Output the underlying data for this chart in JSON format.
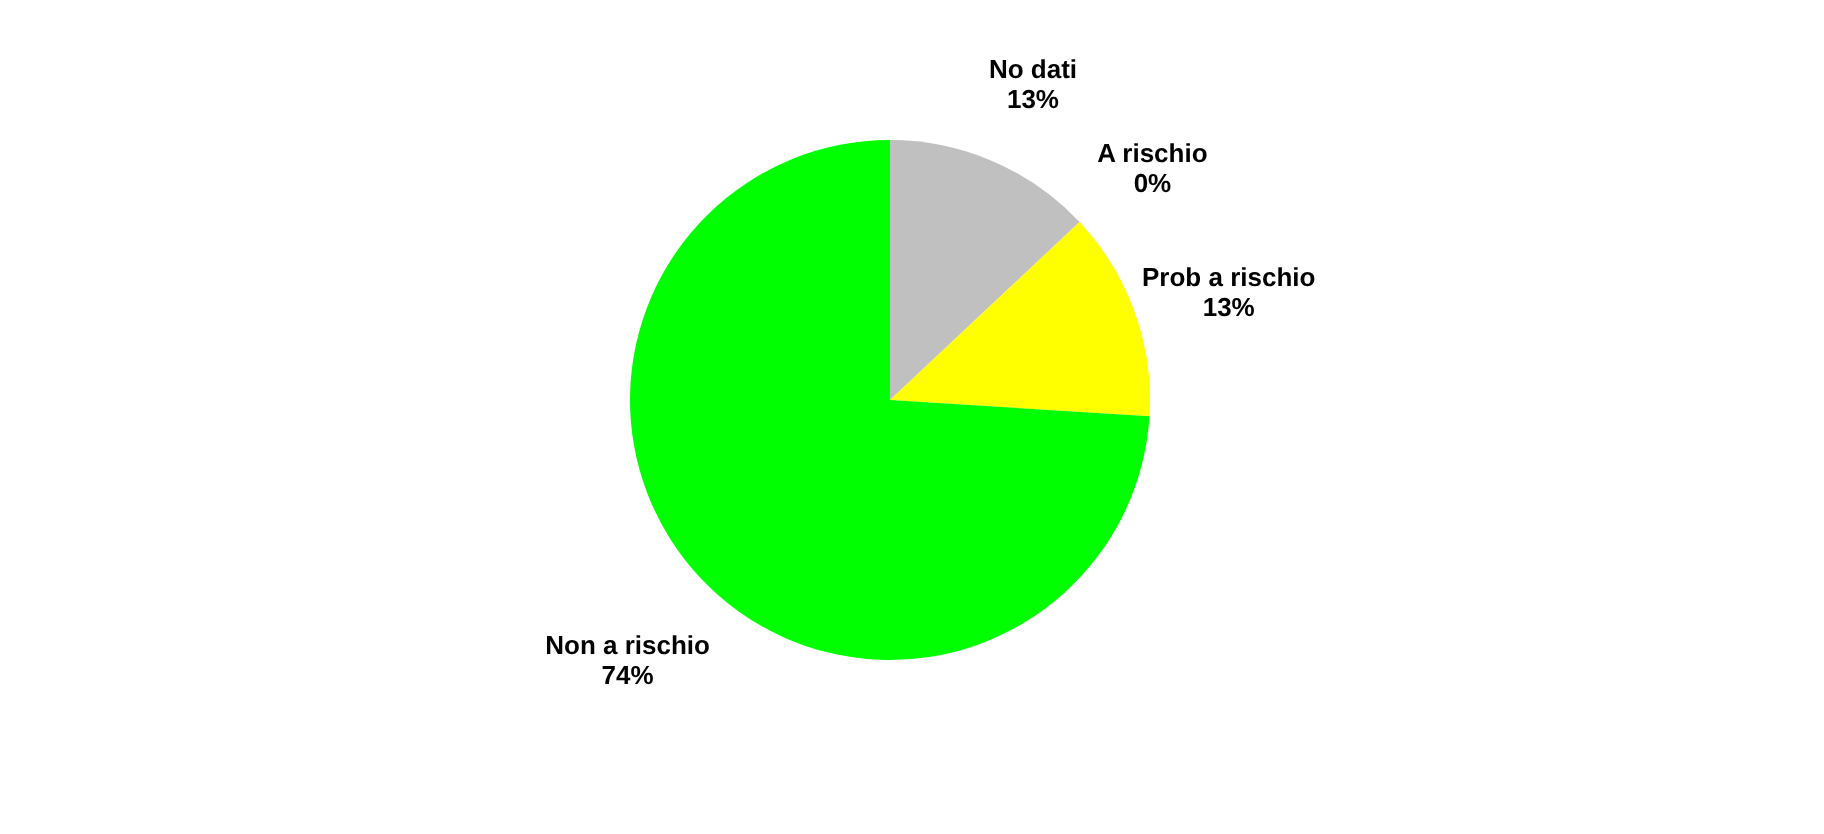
{
  "chart_data": {
    "type": "pie",
    "categories": [
      "No dati",
      "A rischio",
      "Prob a rischio",
      "Non a rischio"
    ],
    "values": [
      13,
      0,
      13,
      74
    ],
    "value_labels": [
      "13%",
      "0%",
      "13%",
      "74%"
    ],
    "colors": [
      "#c0c0c0",
      "#ff0000",
      "#ffff00",
      "#00ff00"
    ],
    "legend": false
  }
}
